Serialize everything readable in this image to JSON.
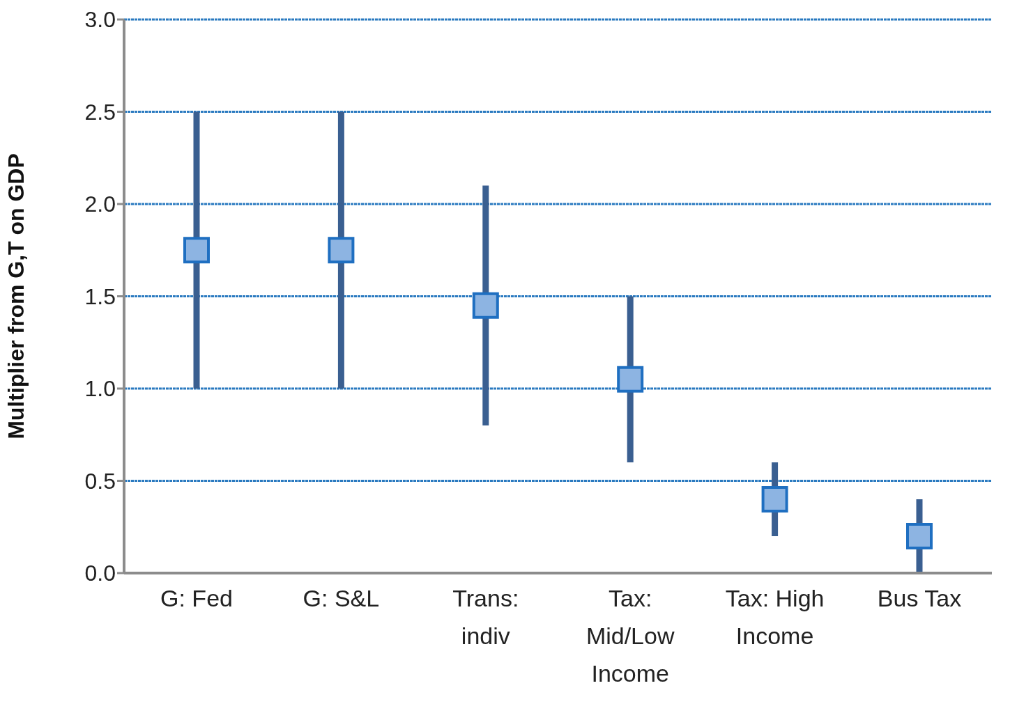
{
  "chart_data": {
    "type": "scatter",
    "ylabel": "Multiplier from G,T on GDP",
    "categories": [
      "G: Fed",
      "G: S&L",
      "Trans: indiv",
      "Tax: Mid/Low Income",
      "Tax: High Income",
      "Bus Tax"
    ],
    "series": [
      {
        "color": "#8db4e2",
        "values": [
          1.75,
          1.75,
          1.45,
          1.05,
          0.4,
          0.2
        ],
        "errors": [
          [
            1.0,
            2.5
          ],
          [
            1.0,
            2.5
          ],
          [
            0.8,
            2.1
          ],
          [
            0.6,
            1.5
          ],
          [
            0.2,
            0.6
          ],
          [
            0.0,
            0.4
          ]
        ]
      }
    ],
    "ylim": [
      0,
      3
    ],
    "yticks": [
      {
        "value": 0,
        "label": "0.0"
      },
      {
        "value": 0.5,
        "label": "0.5"
      },
      {
        "value": 1,
        "label": "1.0"
      },
      {
        "value": 1.5,
        "label": "1.5"
      },
      {
        "value": 2,
        "label": "2.0"
      },
      {
        "value": 2.5,
        "label": "2.5"
      },
      {
        "value": 3,
        "label": "3.0"
      }
    ],
    "grid": "y",
    "marker": "square",
    "legend": false
  }
}
